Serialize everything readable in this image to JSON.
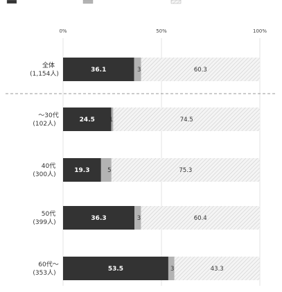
{
  "chart_data": {
    "type": "bar",
    "orientation": "horizontal",
    "stacked": true,
    "percent_stacked": true,
    "xlim": [
      0,
      100
    ],
    "x_ticks": [
      "0%",
      "50%",
      "100%"
    ],
    "legend": {
      "position": "top",
      "entries": [
        "",
        "",
        ""
      ],
      "note": "legend text is cropped at the top edge of the image and is not legible"
    },
    "categories": [
      {
        "line1": "全体",
        "line2": "(1,154人)"
      },
      {
        "line1": "～30代",
        "line2": "(102人)"
      },
      {
        "line1": "40代",
        "line2": "(300人)"
      },
      {
        "line1": "50代",
        "line2": "(399人)"
      },
      {
        "line1": "60代～",
        "line2": "(353人)"
      }
    ],
    "series": [
      {
        "values": [
          36.1,
          24.5,
          19.3,
          36.3,
          53.5
        ],
        "color": "#333333"
      },
      {
        "values": [
          3.6,
          1.0,
          5.3,
          3.3,
          3.1
        ],
        "color": "#b3b3b3"
      },
      {
        "values": [
          60.3,
          74.5,
          75.3,
          60.4,
          43.3
        ],
        "color": "#f3f3f3",
        "pattern": "diagonal-hatch"
      }
    ],
    "separator_after_category": 0
  }
}
